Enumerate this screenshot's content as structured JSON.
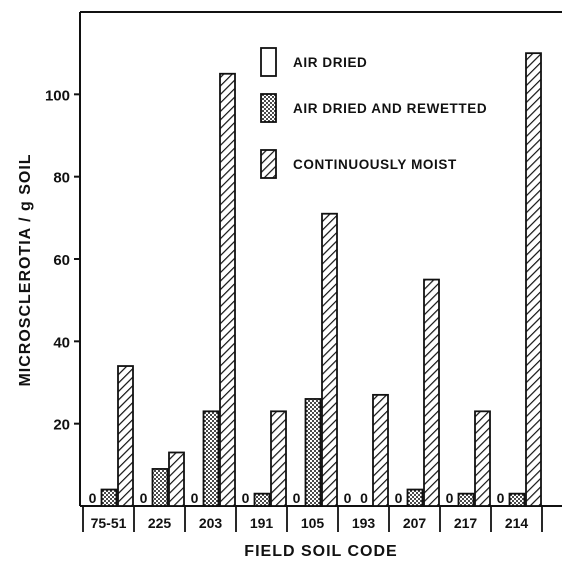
{
  "chart_data": {
    "type": "bar",
    "xlabel": "FIELD SOIL CODE",
    "ylabel": "MICROSCLEROTIA / g SOIL",
    "ylim": [
      0,
      120
    ],
    "yticks": [
      "20",
      "40",
      "60",
      "80",
      "100"
    ],
    "categories": [
      "75-51",
      "225",
      "203",
      "191",
      "105",
      "193",
      "207",
      "217",
      "214"
    ],
    "zero_label": "0",
    "series": [
      {
        "name": "AIR DRIED",
        "pattern": "open",
        "values": [
          0,
          0,
          0,
          0,
          0,
          0,
          0,
          0,
          0
        ]
      },
      {
        "name": "AIR DRIED AND REWETTED",
        "pattern": "dotted",
        "values": [
          4,
          9,
          23,
          3,
          26,
          0,
          4,
          3,
          3
        ]
      },
      {
        "name": "CONTINUOUSLY MOIST",
        "pattern": "hatched",
        "values": [
          34,
          13,
          105,
          23,
          71,
          27,
          55,
          23,
          110
        ]
      }
    ],
    "legend_position": "top-center"
  }
}
